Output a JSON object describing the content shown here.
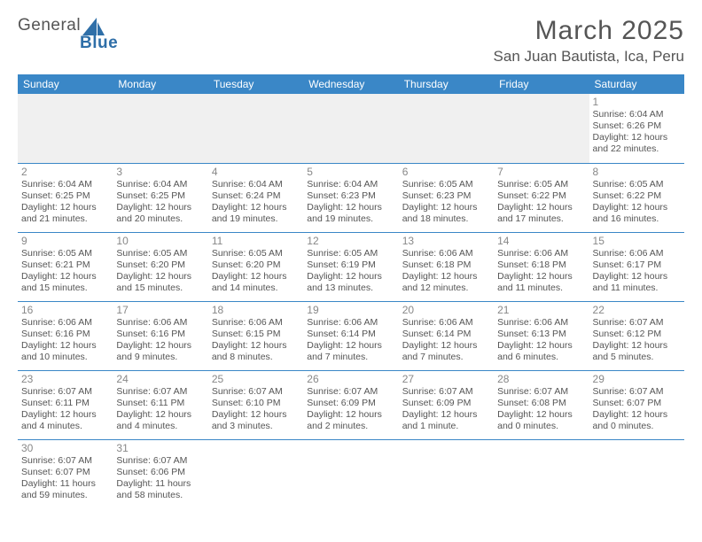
{
  "logo": {
    "text1": "General",
    "text2": "Blue"
  },
  "title": "March 2025",
  "location": "San Juan Bautista, Ica, Peru",
  "colors": {
    "header_bg": "#3a87c7",
    "header_text": "#ffffff",
    "text": "#555555",
    "daynum": "#888888",
    "blank_bg": "#f0f0f0",
    "rule": "#3a87c7",
    "logo_blue": "#2f6fa8"
  },
  "columns": [
    "Sunday",
    "Monday",
    "Tuesday",
    "Wednesday",
    "Thursday",
    "Friday",
    "Saturday"
  ],
  "weeks": [
    [
      null,
      null,
      null,
      null,
      null,
      null,
      {
        "n": "1",
        "sr": "Sunrise: 6:04 AM",
        "ss": "Sunset: 6:26 PM",
        "d1": "Daylight: 12 hours",
        "d2": "and 22 minutes."
      }
    ],
    [
      {
        "n": "2",
        "sr": "Sunrise: 6:04 AM",
        "ss": "Sunset: 6:25 PM",
        "d1": "Daylight: 12 hours",
        "d2": "and 21 minutes."
      },
      {
        "n": "3",
        "sr": "Sunrise: 6:04 AM",
        "ss": "Sunset: 6:25 PM",
        "d1": "Daylight: 12 hours",
        "d2": "and 20 minutes."
      },
      {
        "n": "4",
        "sr": "Sunrise: 6:04 AM",
        "ss": "Sunset: 6:24 PM",
        "d1": "Daylight: 12 hours",
        "d2": "and 19 minutes."
      },
      {
        "n": "5",
        "sr": "Sunrise: 6:04 AM",
        "ss": "Sunset: 6:23 PM",
        "d1": "Daylight: 12 hours",
        "d2": "and 19 minutes."
      },
      {
        "n": "6",
        "sr": "Sunrise: 6:05 AM",
        "ss": "Sunset: 6:23 PM",
        "d1": "Daylight: 12 hours",
        "d2": "and 18 minutes."
      },
      {
        "n": "7",
        "sr": "Sunrise: 6:05 AM",
        "ss": "Sunset: 6:22 PM",
        "d1": "Daylight: 12 hours",
        "d2": "and 17 minutes."
      },
      {
        "n": "8",
        "sr": "Sunrise: 6:05 AM",
        "ss": "Sunset: 6:22 PM",
        "d1": "Daylight: 12 hours",
        "d2": "and 16 minutes."
      }
    ],
    [
      {
        "n": "9",
        "sr": "Sunrise: 6:05 AM",
        "ss": "Sunset: 6:21 PM",
        "d1": "Daylight: 12 hours",
        "d2": "and 15 minutes."
      },
      {
        "n": "10",
        "sr": "Sunrise: 6:05 AM",
        "ss": "Sunset: 6:20 PM",
        "d1": "Daylight: 12 hours",
        "d2": "and 15 minutes."
      },
      {
        "n": "11",
        "sr": "Sunrise: 6:05 AM",
        "ss": "Sunset: 6:20 PM",
        "d1": "Daylight: 12 hours",
        "d2": "and 14 minutes."
      },
      {
        "n": "12",
        "sr": "Sunrise: 6:05 AM",
        "ss": "Sunset: 6:19 PM",
        "d1": "Daylight: 12 hours",
        "d2": "and 13 minutes."
      },
      {
        "n": "13",
        "sr": "Sunrise: 6:06 AM",
        "ss": "Sunset: 6:18 PM",
        "d1": "Daylight: 12 hours",
        "d2": "and 12 minutes."
      },
      {
        "n": "14",
        "sr": "Sunrise: 6:06 AM",
        "ss": "Sunset: 6:18 PM",
        "d1": "Daylight: 12 hours",
        "d2": "and 11 minutes."
      },
      {
        "n": "15",
        "sr": "Sunrise: 6:06 AM",
        "ss": "Sunset: 6:17 PM",
        "d1": "Daylight: 12 hours",
        "d2": "and 11 minutes."
      }
    ],
    [
      {
        "n": "16",
        "sr": "Sunrise: 6:06 AM",
        "ss": "Sunset: 6:16 PM",
        "d1": "Daylight: 12 hours",
        "d2": "and 10 minutes."
      },
      {
        "n": "17",
        "sr": "Sunrise: 6:06 AM",
        "ss": "Sunset: 6:16 PM",
        "d1": "Daylight: 12 hours",
        "d2": "and 9 minutes."
      },
      {
        "n": "18",
        "sr": "Sunrise: 6:06 AM",
        "ss": "Sunset: 6:15 PM",
        "d1": "Daylight: 12 hours",
        "d2": "and 8 minutes."
      },
      {
        "n": "19",
        "sr": "Sunrise: 6:06 AM",
        "ss": "Sunset: 6:14 PM",
        "d1": "Daylight: 12 hours",
        "d2": "and 7 minutes."
      },
      {
        "n": "20",
        "sr": "Sunrise: 6:06 AM",
        "ss": "Sunset: 6:14 PM",
        "d1": "Daylight: 12 hours",
        "d2": "and 7 minutes."
      },
      {
        "n": "21",
        "sr": "Sunrise: 6:06 AM",
        "ss": "Sunset: 6:13 PM",
        "d1": "Daylight: 12 hours",
        "d2": "and 6 minutes."
      },
      {
        "n": "22",
        "sr": "Sunrise: 6:07 AM",
        "ss": "Sunset: 6:12 PM",
        "d1": "Daylight: 12 hours",
        "d2": "and 5 minutes."
      }
    ],
    [
      {
        "n": "23",
        "sr": "Sunrise: 6:07 AM",
        "ss": "Sunset: 6:11 PM",
        "d1": "Daylight: 12 hours",
        "d2": "and 4 minutes."
      },
      {
        "n": "24",
        "sr": "Sunrise: 6:07 AM",
        "ss": "Sunset: 6:11 PM",
        "d1": "Daylight: 12 hours",
        "d2": "and 4 minutes."
      },
      {
        "n": "25",
        "sr": "Sunrise: 6:07 AM",
        "ss": "Sunset: 6:10 PM",
        "d1": "Daylight: 12 hours",
        "d2": "and 3 minutes."
      },
      {
        "n": "26",
        "sr": "Sunrise: 6:07 AM",
        "ss": "Sunset: 6:09 PM",
        "d1": "Daylight: 12 hours",
        "d2": "and 2 minutes."
      },
      {
        "n": "27",
        "sr": "Sunrise: 6:07 AM",
        "ss": "Sunset: 6:09 PM",
        "d1": "Daylight: 12 hours",
        "d2": "and 1 minute."
      },
      {
        "n": "28",
        "sr": "Sunrise: 6:07 AM",
        "ss": "Sunset: 6:08 PM",
        "d1": "Daylight: 12 hours",
        "d2": "and 0 minutes."
      },
      {
        "n": "29",
        "sr": "Sunrise: 6:07 AM",
        "ss": "Sunset: 6:07 PM",
        "d1": "Daylight: 12 hours",
        "d2": "and 0 minutes."
      }
    ],
    [
      {
        "n": "30",
        "sr": "Sunrise: 6:07 AM",
        "ss": "Sunset: 6:07 PM",
        "d1": "Daylight: 11 hours",
        "d2": "and 59 minutes."
      },
      {
        "n": "31",
        "sr": "Sunrise: 6:07 AM",
        "ss": "Sunset: 6:06 PM",
        "d1": "Daylight: 11 hours",
        "d2": "and 58 minutes."
      },
      null,
      null,
      null,
      null,
      null
    ]
  ]
}
